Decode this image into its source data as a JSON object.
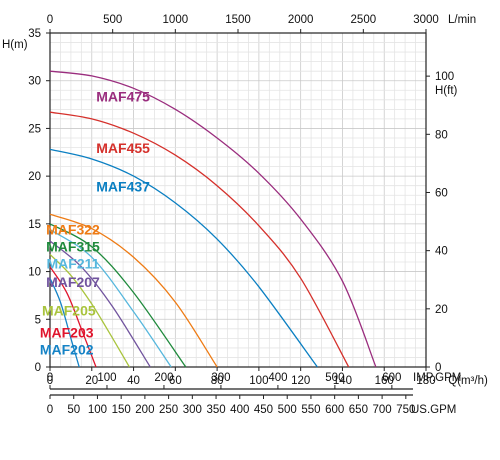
{
  "chart_data": {
    "type": "line",
    "title": "",
    "x": {
      "label": "Q(m³/h)",
      "min": 0,
      "max": 180,
      "ticks": [
        0,
        20,
        40,
        60,
        80,
        100,
        120,
        140,
        160,
        180
      ]
    },
    "y": {
      "label": "H(m)",
      "min": 0,
      "max": 35,
      "ticks": [
        0,
        5,
        10,
        15,
        20,
        25,
        30,
        35
      ]
    },
    "top_axis": {
      "label": "L/min",
      "ticks": [
        0,
        500,
        1000,
        1500,
        2000,
        2500,
        3000
      ]
    },
    "right_axis": {
      "label": "H(ft)",
      "ticks": [
        0,
        20,
        40,
        60,
        80,
        100
      ]
    },
    "imp_axis": {
      "label": "IMP.GPM",
      "ticks": [
        0,
        100,
        200,
        300,
        400,
        500,
        600
      ]
    },
    "us_axis": {
      "label": "US.GPM",
      "ticks": [
        0,
        50,
        100,
        150,
        200,
        250,
        300,
        350,
        400,
        450,
        500,
        550,
        600,
        650,
        700,
        750
      ]
    },
    "grid": true,
    "series": [
      {
        "name": "MAF475",
        "color": "#9a2d7e",
        "label_at": [
          35,
          27.8
        ],
        "points": [
          [
            0,
            31
          ],
          [
            20,
            30.5
          ],
          [
            40,
            29.2
          ],
          [
            60,
            27.0
          ],
          [
            80,
            24.0
          ],
          [
            100,
            20.3
          ],
          [
            120,
            15.5
          ],
          [
            140,
            9.0
          ],
          [
            156,
            0
          ]
        ]
      },
      {
        "name": "MAF455",
        "color": "#d5302b",
        "label_at": [
          35,
          22.4
        ],
        "points": [
          [
            0,
            26.7
          ],
          [
            20,
            26.0
          ],
          [
            40,
            24.5
          ],
          [
            60,
            22.2
          ],
          [
            80,
            19.0
          ],
          [
            100,
            14.8
          ],
          [
            120,
            9.3
          ],
          [
            143,
            0
          ]
        ]
      },
      {
        "name": "MAF437",
        "color": "#0a7fc2",
        "label_at": [
          35,
          18.4
        ],
        "points": [
          [
            0,
            22.8
          ],
          [
            20,
            21.8
          ],
          [
            40,
            20.0
          ],
          [
            60,
            17.2
          ],
          [
            80,
            13.4
          ],
          [
            100,
            8.4
          ],
          [
            128,
            0
          ]
        ]
      },
      {
        "name": "MAF322",
        "color": "#ee7b14",
        "label_at": [
          11,
          13.9
        ],
        "points": [
          [
            0,
            16.0
          ],
          [
            20,
            14.5
          ],
          [
            40,
            11.5
          ],
          [
            60,
            6.8
          ],
          [
            80,
            0
          ]
        ]
      },
      {
        "name": "MAF315",
        "color": "#1f8a3c",
        "label_at": [
          11,
          12.1
        ],
        "points": [
          [
            0,
            15.0
          ],
          [
            20,
            12.6
          ],
          [
            40,
            7.8
          ],
          [
            65,
            0
          ]
        ]
      },
      {
        "name": "MAF211",
        "color": "#56b7dd",
        "label_at": [
          11,
          10.3
        ],
        "points": [
          [
            0,
            14.4
          ],
          [
            20,
            11.5
          ],
          [
            40,
            5.8
          ],
          [
            58,
            0
          ]
        ]
      },
      {
        "name": "MAF207",
        "color": "#71549e",
        "label_at": [
          11,
          8.4
        ],
        "points": [
          [
            0,
            13.2
          ],
          [
            15,
            10.5
          ],
          [
            30,
            6.3
          ],
          [
            48,
            0
          ]
        ]
      },
      {
        "name": "MAF205",
        "color": "#a9c43d",
        "label_at": [
          9,
          5.4
        ],
        "points": [
          [
            0,
            11.8
          ],
          [
            10,
            9.6
          ],
          [
            20,
            6.6
          ],
          [
            30,
            3.0
          ],
          [
            38,
            0
          ]
        ]
      },
      {
        "name": "MAF203",
        "color": "#e0152d",
        "label_at": [
          8,
          3.1
        ],
        "points": [
          [
            0,
            10.5
          ],
          [
            8,
            7.8
          ],
          [
            15,
            4.0
          ],
          [
            22,
            0
          ]
        ]
      },
      {
        "name": "MAF202",
        "color": "#1583c6",
        "label_at": [
          8,
          1.3
        ],
        "points": [
          [
            0,
            9.3
          ],
          [
            5,
            6.8
          ],
          [
            10,
            3.0
          ],
          [
            14,
            0
          ]
        ]
      }
    ]
  }
}
